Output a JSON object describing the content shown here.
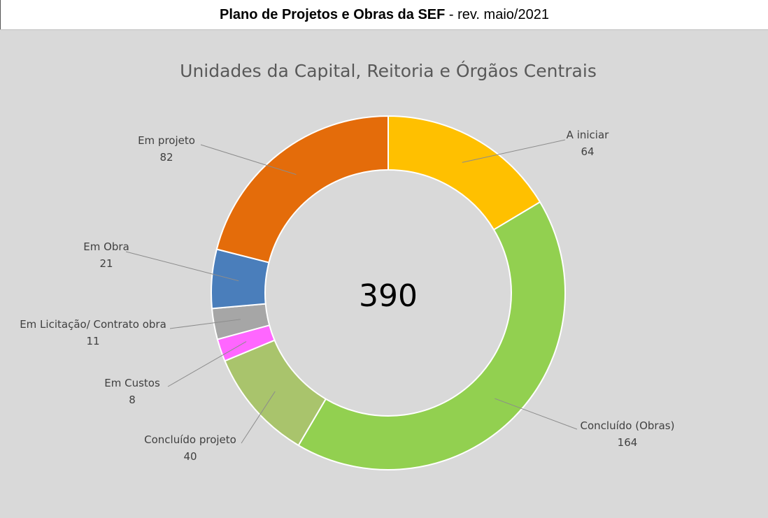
{
  "header": {
    "title_bold": "Plano de Projetos e Obras da SEF",
    "title_rest": " - rev. maio/2021"
  },
  "chart_data": {
    "type": "pie",
    "variant": "donut",
    "title": "Unidades da Capital, Reitoria e Órgãos Centrais",
    "center_label": "390",
    "total": 390,
    "legend": "none",
    "slices": [
      {
        "label": "A iniciar",
        "value": 64,
        "color": "#ffc000"
      },
      {
        "label": "Concluído (Obras)",
        "value": 164,
        "color": "#92d050"
      },
      {
        "label": "Concluído projeto",
        "value": 40,
        "color": "#a9c46c"
      },
      {
        "label": "Em Custos",
        "value": 8,
        "color": "#ff66ff"
      },
      {
        "label": "Em Licitação/ Contrato obra",
        "value": 11,
        "color": "#a6a6a6"
      },
      {
        "label": "Em Obra",
        "value": 21,
        "color": "#4a7ebb"
      },
      {
        "label": "Em projeto",
        "value": 82,
        "color": "#e46c0a"
      }
    ]
  }
}
